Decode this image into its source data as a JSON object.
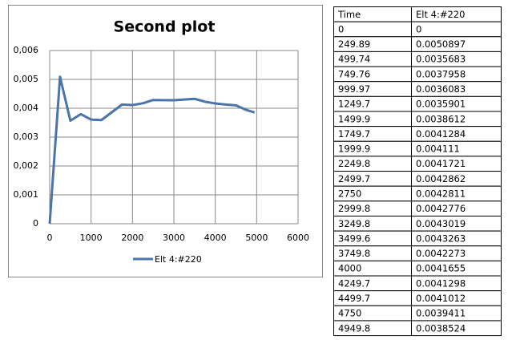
{
  "chart_data": {
    "type": "line",
    "title": "Second plot",
    "x": [
      0,
      249.89,
      499.74,
      749.76,
      999.97,
      1249.7,
      1499.9,
      1749.7,
      1999.9,
      2249.8,
      2499.7,
      2750,
      2999.8,
      3249.8,
      3499.6,
      3749.8,
      4000,
      4249.7,
      4499.7,
      4750,
      4949.8
    ],
    "series": [
      {
        "name": "Elt 4:#220",
        "color": "#4a74aa",
        "values": [
          0,
          0.0050897,
          0.0035683,
          0.0037958,
          0.0036083,
          0.0035901,
          0.0038612,
          0.0041284,
          0.004111,
          0.0041721,
          0.0042862,
          0.0042811,
          0.0042776,
          0.0043019,
          0.0043263,
          0.0042273,
          0.0041655,
          0.0041298,
          0.0041012,
          0.0039411,
          0.0038524
        ]
      }
    ],
    "xlim": [
      0,
      6000
    ],
    "xticks": [
      0,
      1000,
      2000,
      3000,
      4000,
      5000,
      6000
    ],
    "ylim": [
      0,
      0.006
    ],
    "yticks": [
      0,
      {
        "value": 0.001,
        "label": "0,001"
      },
      {
        "value": 0.002,
        "label": "0,002"
      },
      {
        "value": 0.003,
        "label": "0,003"
      },
      {
        "value": 0.004,
        "label": "0,004"
      },
      {
        "value": 0.005,
        "label": "0,005"
      },
      {
        "value": 0.006,
        "label": "0,006"
      }
    ],
    "grid": true,
    "legend": "bottom"
  },
  "table": {
    "header": [
      "Time",
      "Elt 4:#220"
    ],
    "rows": [
      [
        "0",
        "0"
      ],
      [
        "249.89",
        "0.0050897"
      ],
      [
        "499.74",
        "0.0035683"
      ],
      [
        "749.76",
        "0.0037958"
      ],
      [
        "999.97",
        "0.0036083"
      ],
      [
        "1249.7",
        "0.0035901"
      ],
      [
        "1499.9",
        "0.0038612"
      ],
      [
        "1749.7",
        "0.0041284"
      ],
      [
        "1999.9",
        "0.004111"
      ],
      [
        "2249.8",
        "0.0041721"
      ],
      [
        "2499.7",
        "0.0042862"
      ],
      [
        "2750",
        "0.0042811"
      ],
      [
        "2999.8",
        "0.0042776"
      ],
      [
        "3249.8",
        "0.0043019"
      ],
      [
        "3499.6",
        "0.0043263"
      ],
      [
        "3749.8",
        "0.0042273"
      ],
      [
        "4000",
        "0.0041655"
      ],
      [
        "4249.7",
        "0.0041298"
      ],
      [
        "4499.7",
        "0.0041012"
      ],
      [
        "4750",
        "0.0039411"
      ],
      [
        "4949.8",
        "0.0038524"
      ]
    ]
  }
}
